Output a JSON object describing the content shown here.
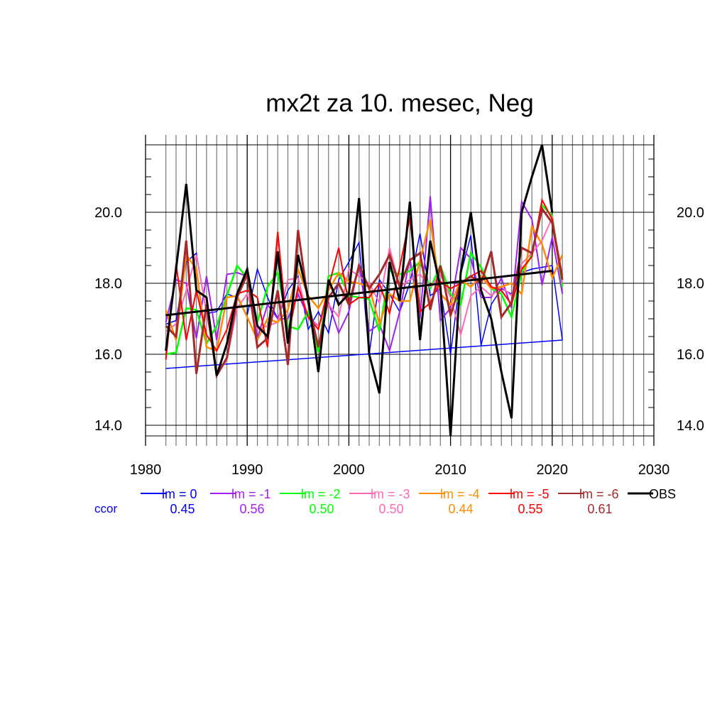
{
  "chart_data": {
    "type": "line",
    "title": "mx2t za 10. mesec, Neg",
    "xlabel": "",
    "ylabel": "",
    "xlim": [
      1980,
      2030
    ],
    "ylim": [
      13.7,
      21.9
    ],
    "x_ticks": [
      "1980",
      "1990",
      "2000",
      "2010",
      "2020",
      "2030"
    ],
    "x_tick_values": [
      1980,
      1990,
      2000,
      2010,
      2020,
      2030
    ],
    "y_ticks": [
      "14.0",
      "16.0",
      "18.0",
      "20.0"
    ],
    "y_tick_values": [
      14,
      16,
      18,
      20
    ],
    "grid": true,
    "legend_position": "bottom",
    "ccor_label": "ccor",
    "series": [
      {
        "name": "lm = 0",
        "color": "#0000ff",
        "ccor": "0.45",
        "width": 1.5,
        "start": 1982,
        "values": [
          16.85,
          16.95,
          18.6,
          18.85,
          17.15,
          17.2,
          17.7,
          17.6,
          17.1,
          18.4,
          17.6,
          17.0,
          17.8,
          18.2,
          16.7,
          17.2,
          16.6,
          18.1,
          18.6,
          19.15,
          16.0,
          18.1,
          17.7,
          17.2,
          18.0,
          19.4,
          17.65,
          17.85,
          16.0,
          18.25,
          19.35,
          16.25,
          17.4,
          17.85,
          17.7,
          18.3,
          18.4,
          18.45,
          18.5,
          16.4
        ],
        "trend": [
          [
            1982,
            15.6
          ],
          [
            2021,
            16.4
          ]
        ]
      },
      {
        "name": "lm = -1",
        "color": "#a020f0",
        "ccor": "0.56",
        "width": 2,
        "start": 1982,
        "values": [
          16.9,
          18.1,
          18.0,
          16.45,
          18.2,
          16.4,
          18.25,
          18.3,
          18.2,
          16.45,
          17.4,
          17.0,
          17.0,
          17.7,
          17.05,
          16.8,
          17.45,
          16.6,
          17.2,
          18.55,
          16.65,
          16.85,
          16.1,
          17.2,
          18.7,
          17.0,
          20.45,
          16.95,
          17.3,
          19.0,
          18.7,
          17.6,
          17.6,
          18.15,
          17.3,
          20.3,
          19.8,
          17.95,
          19.3,
          17.7
        ]
      },
      {
        "name": "lm = -2",
        "color": "#00ff00",
        "ccor": "0.50",
        "width": 2.5,
        "start": 1982,
        "values": [
          16.0,
          16.05,
          17.3,
          17.25,
          16.3,
          16.8,
          17.65,
          18.5,
          18.15,
          16.9,
          17.9,
          18.3,
          16.8,
          16.7,
          17.2,
          16.05,
          18.2,
          18.3,
          17.65,
          17.6,
          17.55,
          16.65,
          18.35,
          18.25,
          18.35,
          18.6,
          17.85,
          18.5,
          17.7,
          17.4,
          18.85,
          18.45,
          17.85,
          17.7,
          17.05,
          18.3,
          18.8,
          20.2,
          19.9,
          17.9
        ]
      },
      {
        "name": "lm = -3",
        "color": "#ff69b4",
        "ccor": "0.50",
        "width": 2,
        "start": 1982,
        "values": [
          16.65,
          16.85,
          17.8,
          18.8,
          17.2,
          15.4,
          15.85,
          17.3,
          17.7,
          16.7,
          16.8,
          16.9,
          18.1,
          18.15,
          17.0,
          16.8,
          17.4,
          17.05,
          18.4,
          18.2,
          18.0,
          17.45,
          19.0,
          17.9,
          18.1,
          18.25,
          17.9,
          18.25,
          17.6,
          16.55,
          17.65,
          17.9,
          17.65,
          17.9,
          17.65,
          18.55,
          18.85,
          19.2,
          19.85,
          18.0
        ]
      },
      {
        "name": "lm = -4",
        "color": "#ff8c00",
        "ccor": "0.44",
        "width": 2.5,
        "start": 1982,
        "values": [
          17.25,
          16.4,
          18.8,
          18.4,
          16.2,
          16.1,
          17.6,
          17.65,
          17.05,
          16.4,
          17.0,
          16.9,
          17.25,
          18.4,
          17.65,
          17.3,
          17.8,
          18.3,
          18.05,
          18.0,
          17.9,
          16.85,
          17.7,
          17.5,
          17.5,
          18.65,
          19.8,
          17.7,
          17.4,
          18.1,
          17.9,
          18.2,
          17.85,
          17.9,
          18.0,
          17.7,
          19.6,
          19.1,
          18.15,
          18.8
        ]
      },
      {
        "name": "lm = -5",
        "color": "#ff0000",
        "ccor": "0.55",
        "width": 2,
        "start": 1982,
        "values": [
          15.85,
          18.55,
          16.4,
          17.8,
          16.55,
          16.1,
          16.7,
          17.7,
          17.8,
          17.6,
          16.2,
          19.45,
          16.45,
          17.9,
          17.05,
          16.7,
          17.9,
          19.0,
          17.4,
          17.6,
          17.6,
          18.0,
          17.15,
          18.45,
          19.85,
          17.2,
          17.45,
          18.05,
          17.85,
          18.0,
          18.2,
          18.35,
          17.9,
          17.8,
          17.4,
          18.4,
          18.75,
          20.35,
          19.8,
          18.2
        ]
      },
      {
        "name": "lm = -6",
        "color": "#a52a2a",
        "ccor": "0.61",
        "width": 3,
        "start": 1982,
        "values": [
          16.8,
          16.5,
          19.2,
          15.45,
          17.4,
          15.4,
          15.9,
          17.6,
          18.25,
          16.2,
          16.45,
          17.8,
          15.7,
          19.5,
          17.45,
          16.2,
          17.6,
          18.0,
          17.4,
          18.5,
          17.85,
          18.25,
          18.8,
          17.9,
          18.65,
          18.85,
          17.25,
          18.5,
          17.1,
          18.0,
          18.2,
          18.0,
          18.9,
          17.05,
          17.45,
          19.0,
          18.85,
          20.1,
          19.7,
          18.1
        ]
      },
      {
        "name": "OBS",
        "color": "#000000",
        "ccor": "",
        "width": 3,
        "start": 1982,
        "values": [
          16.1,
          18.4,
          20.8,
          17.8,
          17.6,
          15.4,
          16.3,
          17.7,
          18.4,
          16.8,
          16.5,
          18.9,
          16.3,
          18.8,
          17.6,
          15.5,
          18.1,
          17.4,
          17.7,
          20.4,
          16.0,
          14.9,
          18.6,
          17.5,
          20.3,
          16.4,
          19.2,
          17.9,
          13.7,
          18.3,
          20.0,
          17.8,
          17.0,
          15.5,
          14.2,
          20.0,
          21.0,
          21.9,
          20.0
        ],
        "trend": [
          [
            1982,
            17.1
          ],
          [
            2020,
            18.35
          ]
        ]
      }
    ]
  }
}
